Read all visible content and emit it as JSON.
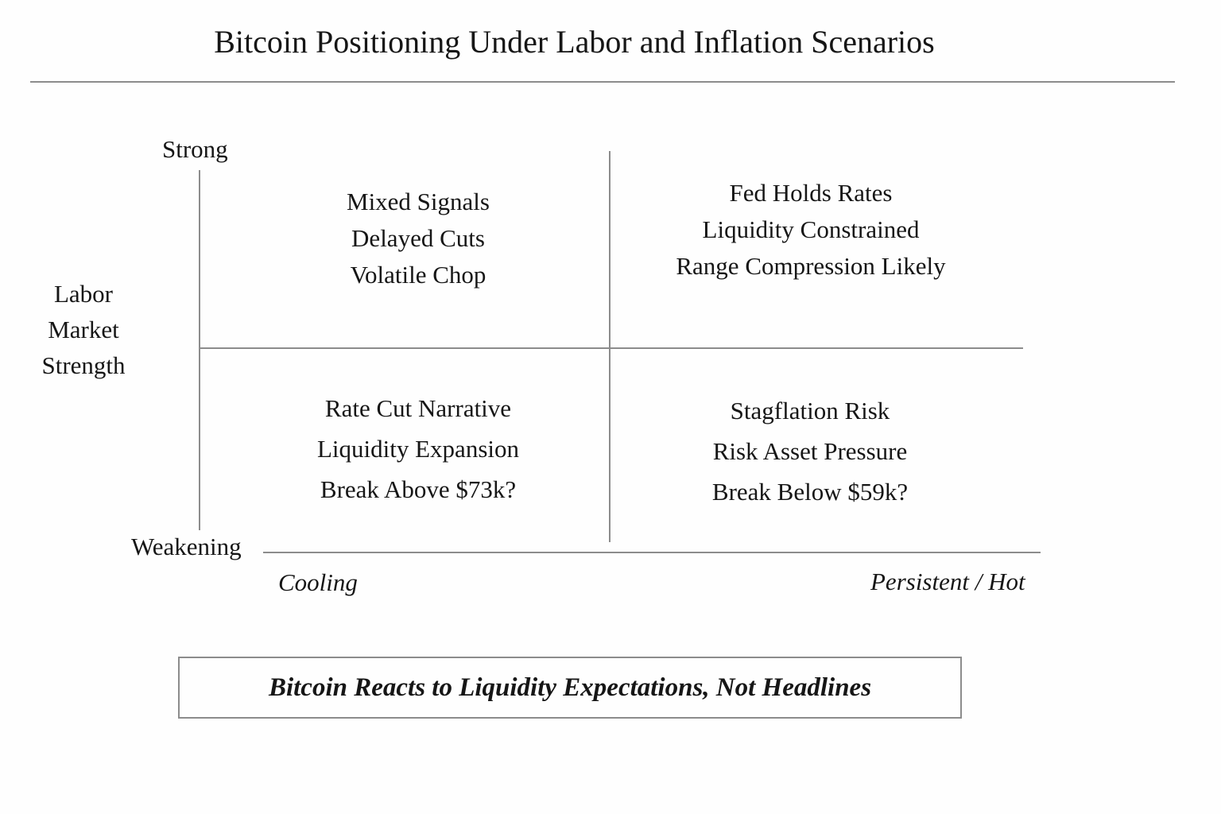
{
  "title": "Bitcoin Positioning Under Labor and Inflation Scenarios",
  "matrix": {
    "y_axis": {
      "title_lines": [
        "Labor",
        "Market",
        "Strength"
      ],
      "top_label": "Strong",
      "bottom_label": "Weakening"
    },
    "x_axis": {
      "left_label": "Cooling",
      "right_label": "Persistent / Hot"
    },
    "quadrants": {
      "top_left": {
        "lines": [
          "Mixed Signals",
          "Delayed Cuts",
          "Volatile Chop"
        ]
      },
      "top_right": {
        "lines": [
          "Fed Holds Rates",
          "Liquidity Constrained",
          "Range Compression Likely"
        ]
      },
      "bottom_left": {
        "lines": [
          "Rate Cut Narrative",
          "Liquidity Expansion",
          "Break Above $73k?"
        ]
      },
      "bottom_right": {
        "lines": [
          "Stagflation Risk",
          "Risk Asset Pressure",
          "Break Below $59k?"
        ]
      }
    }
  },
  "callout": "Bitcoin Reacts to Liquidity Expectations, Not Headlines",
  "colors": {
    "text": "#161616",
    "line": "#8c8c8c",
    "background": "#fefefe"
  }
}
